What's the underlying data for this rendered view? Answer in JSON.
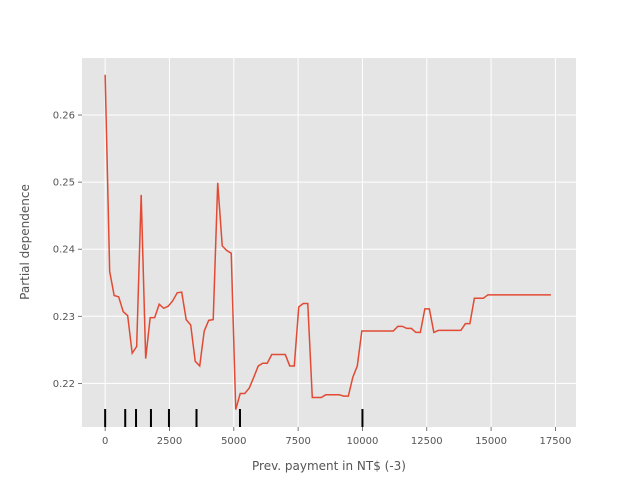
{
  "chart_data": {
    "type": "line",
    "title": "",
    "xlabel": "Prev. payment in NT$ (-3)",
    "ylabel": "Partial dependence",
    "xlim": [
      -900,
      18300
    ],
    "ylim": [
      0.2135,
      0.2685
    ],
    "grid": true,
    "background": "#E5E5E5",
    "grid_color": "#FFFFFF",
    "line_color": "#E24A33",
    "rug_color": "#000000",
    "x_ticks": [
      0,
      2500,
      5000,
      7500,
      10000,
      12500,
      15000,
      17500
    ],
    "x_tick_labels": [
      "0",
      "2500",
      "5000",
      "7500",
      "10000",
      "12500",
      "15000",
      "17500"
    ],
    "y_ticks": [
      0.22,
      0.23,
      0.24,
      0.25,
      0.26
    ],
    "y_tick_labels": [
      "0.22",
      "0.23",
      "0.24",
      "0.25",
      "0.26"
    ],
    "rug_values": [
      0,
      780,
      1200,
      1780,
      2480,
      3550,
      5240,
      10000
    ],
    "series": [
      {
        "x": [
          0,
          175,
          350,
          525,
          700,
          875,
          1050,
          1225,
          1400,
          1575,
          1750,
          1925,
          2100,
          2275,
          2450,
          2625,
          2800,
          2975,
          3150,
          3325,
          3500,
          3675,
          3850,
          4025,
          4200,
          4375,
          4550,
          4725,
          4900,
          5075,
          5250,
          5425,
          5600,
          5775,
          5950,
          6125,
          6300,
          6475,
          6650,
          6825,
          7000,
          7175,
          7350,
          7525,
          7700,
          7875,
          8050,
          8225,
          8400,
          8575,
          8750,
          8925,
          9100,
          9275,
          9450,
          9625,
          9800,
          9975,
          10150,
          10325,
          10500,
          10675,
          10850,
          11025,
          11200,
          11375,
          11550,
          11725,
          11900,
          12075,
          12250,
          12425,
          12600,
          12775,
          12950,
          13125,
          13300,
          13475,
          13650,
          13825,
          14000,
          14175,
          14350,
          14525,
          14700,
          14875,
          15050,
          15225,
          15400,
          15575,
          15750,
          15925,
          16100,
          16275,
          16450,
          16625,
          16800,
          16975,
          17150,
          17325
        ],
        "y": [
          0.266,
          0.2367,
          0.2331,
          0.2329,
          0.2307,
          0.2301,
          0.2245,
          0.2255,
          0.2481,
          0.2237,
          0.2298,
          0.2298,
          0.2318,
          0.2312,
          0.2315,
          0.2323,
          0.2335,
          0.2336,
          0.2295,
          0.2287,
          0.2233,
          0.2226,
          0.2278,
          0.2294,
          0.2295,
          0.2499,
          0.2405,
          0.2398,
          0.2394,
          0.2161,
          0.2185,
          0.2185,
          0.2193,
          0.2209,
          0.2226,
          0.223,
          0.223,
          0.2243,
          0.2243,
          0.2243,
          0.2243,
          0.2226,
          0.2226,
          0.2314,
          0.2319,
          0.2319,
          0.2179,
          0.2179,
          0.2179,
          0.2183,
          0.2183,
          0.2183,
          0.2183,
          0.2181,
          0.2181,
          0.2209,
          0.2226,
          0.2278,
          0.2278,
          0.2278,
          0.2278,
          0.2278,
          0.2278,
          0.2278,
          0.2278,
          0.2285,
          0.2285,
          0.2282,
          0.2282,
          0.2276,
          0.2276,
          0.2311,
          0.2311,
          0.2276,
          0.2279,
          0.2279,
          0.2279,
          0.2279,
          0.2279,
          0.2279,
          0.2289,
          0.2289,
          0.2327,
          0.2327,
          0.2327,
          0.2332,
          0.2332,
          0.2332,
          0.2332,
          0.2332,
          0.2332,
          0.2332,
          0.2332,
          0.2332,
          0.2332,
          0.2332,
          0.2332,
          0.2332,
          0.2332,
          0.2332
        ]
      }
    ]
  }
}
